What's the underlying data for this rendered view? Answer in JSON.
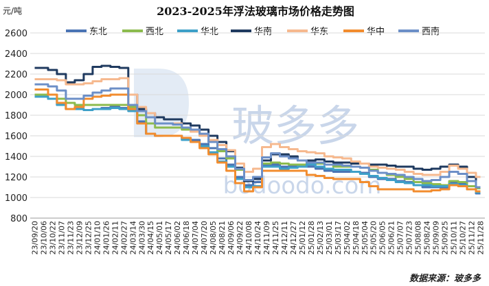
{
  "chart_data": {
    "type": "line",
    "title": "2023-2025年浮法玻璃市场价格走势图",
    "unit_label": "元/吨",
    "source": "数据来源：玻多多",
    "watermark": {
      "brand_text": "bodoodo.com",
      "logo_chars": "玻多多"
    },
    "ylim": [
      800,
      2600
    ],
    "yticks": [
      800,
      1000,
      1200,
      1400,
      1600,
      1800,
      2000,
      2200,
      2400,
      2600
    ],
    "grid": true,
    "legend_position": "top",
    "x_tick_labels": [
      "23/09/20",
      "23/10/06",
      "23/10/22",
      "23/11/07",
      "23/11/23",
      "23/12/09",
      "23/12/25",
      "24/01/10",
      "24/01/26",
      "24/02/11",
      "24/02/27",
      "24/03/14",
      "24/03/30",
      "24/04/15",
      "24/05/01",
      "24/05/17",
      "24/06/02",
      "24/06/18",
      "24/07/04",
      "24/07/20",
      "24/08/05",
      "24/08/21",
      "24/09/06",
      "24/09/22",
      "24/10/08",
      "24/10/24",
      "24/11/09",
      "24/11/25",
      "24/12/11",
      "24/12/27",
      "25/01/12",
      "25/01/28",
      "25/02/13",
      "25/03/01",
      "25/03/17",
      "25/04/02",
      "25/04/18",
      "25/05/04",
      "25/05/20",
      "25/06/05",
      "25/06/21",
      "25/07/07",
      "25/07/23",
      "25/08/08",
      "25/08/24",
      "25/09/09",
      "25/09/25",
      "25/10/11",
      "25/10/27",
      "25/11/12",
      "25/11/28"
    ],
    "series": [
      {
        "name": "东北",
        "color": "#4a74b4",
        "values": [
          1980,
          1980,
          1960,
          1900,
          1860,
          1860,
          1850,
          1860,
          1870,
          1880,
          1870,
          1860,
          1740,
          1620,
          1600,
          1600,
          1600,
          1580,
          1560,
          1520,
          1480,
          1380,
          1320,
          1200,
          1120,
          1150,
          1320,
          1320,
          1300,
          1300,
          1300,
          1300,
          1280,
          1260,
          1250,
          1250,
          1250,
          1240,
          1200,
          1180,
          1180,
          1160,
          1150,
          1120,
          1100,
          1100,
          1100,
          1150,
          1130,
          1080,
          1040
        ]
      },
      {
        "name": "西北",
        "color": "#8cbb4e",
        "values": [
          2000,
          2000,
          2000,
          1960,
          1920,
          1900,
          1900,
          1900,
          1900,
          1900,
          1900,
          1880,
          1800,
          1720,
          1680,
          1680,
          1680,
          1660,
          1640,
          1600,
          1540,
          1450,
          1380,
          1270,
          1170,
          1200,
          1330,
          1340,
          1330,
          1320,
          1320,
          1330,
          1330,
          1320,
          1300,
          1300,
          1300,
          1290,
          1270,
          1240,
          1220,
          1200,
          1180,
          1150,
          1140,
          1130,
          1120,
          1160,
          1150,
          1110,
          1090
        ]
      },
      {
        "name": "华北",
        "color": "#3ea0c8",
        "values": [
          1980,
          1980,
          1960,
          1900,
          1860,
          1860,
          1850,
          1860,
          1860,
          1870,
          1860,
          1840,
          1720,
          1620,
          1600,
          1600,
          1600,
          1560,
          1540,
          1500,
          1440,
          1350,
          1300,
          1180,
          1100,
          1110,
          1300,
          1300,
          1280,
          1290,
          1300,
          1320,
          1300,
          1280,
          1270,
          1270,
          1250,
          1230,
          1210,
          1190,
          1170,
          1150,
          1140,
          1120,
          1120,
          1110,
          1110,
          1130,
          1120,
          1080,
          1050
        ]
      },
      {
        "name": "华南",
        "color": "#1f3a5f",
        "values": [
          2260,
          2260,
          2240,
          2200,
          2120,
          2140,
          2200,
          2270,
          2280,
          2270,
          2260,
          2000,
          1860,
          1820,
          1780,
          1760,
          1760,
          1720,
          1700,
          1660,
          1600,
          1540,
          1450,
          1290,
          1160,
          1180,
          1360,
          1420,
          1420,
          1400,
          1360,
          1360,
          1370,
          1350,
          1340,
          1340,
          1330,
          1330,
          1320,
          1320,
          1310,
          1300,
          1300,
          1280,
          1270,
          1280,
          1300,
          1320,
          1300,
          1200,
          1100
        ]
      },
      {
        "name": "华东",
        "color": "#f6b98f",
        "values": [
          2150,
          2150,
          2150,
          2140,
          2100,
          2100,
          2110,
          2130,
          2150,
          2150,
          2160,
          2000,
          1880,
          1820,
          1720,
          1720,
          1720,
          1680,
          1640,
          1600,
          1560,
          1510,
          1460,
          1330,
          1250,
          1280,
          1490,
          1520,
          1490,
          1470,
          1450,
          1440,
          1430,
          1400,
          1390,
          1380,
          1350,
          1330,
          1300,
          1290,
          1280,
          1270,
          1250,
          1230,
          1220,
          1220,
          1250,
          1310,
          1280,
          1240,
          1200
        ]
      },
      {
        "name": "华中",
        "color": "#f28c2e",
        "values": [
          2050,
          2050,
          2000,
          1920,
          1860,
          1880,
          1960,
          1980,
          1990,
          2000,
          2000,
          1860,
          1720,
          1620,
          1600,
          1600,
          1600,
          1580,
          1540,
          1480,
          1420,
          1340,
          1260,
          1140,
          1060,
          1100,
          1260,
          1260,
          1260,
          1260,
          1260,
          1220,
          1210,
          1190,
          1180,
          1180,
          1180,
          1150,
          1110,
          1080,
          1080,
          1080,
          1080,
          1060,
          1060,
          1070,
          1080,
          1120,
          1110,
          1080,
          1060
        ]
      },
      {
        "name": "西南",
        "color": "#6c8fc7",
        "values": [
          2100,
          2100,
          2080,
          2040,
          1960,
          1960,
          1990,
          2020,
          2040,
          2060,
          2060,
          1900,
          1840,
          1780,
          1720,
          1720,
          1710,
          1680,
          1660,
          1620,
          1540,
          1470,
          1400,
          1280,
          1170,
          1200,
          1390,
          1430,
          1400,
          1380,
          1360,
          1340,
          1340,
          1320,
          1320,
          1310,
          1300,
          1290,
          1260,
          1240,
          1230,
          1220,
          1200,
          1180,
          1160,
          1170,
          1200,
          1250,
          1230,
          1160,
          1100
        ]
      }
    ]
  }
}
